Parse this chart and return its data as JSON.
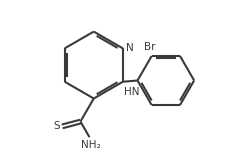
{
  "background_color": "#ffffff",
  "line_color": "#3a3a3a",
  "line_width": 1.5,
  "text_color": "#3a3a3a",
  "figsize": [
    2.51,
    1.53
  ],
  "dpi": 100,
  "xlim": [
    0.02,
    0.98
  ],
  "ylim": [
    0.08,
    0.95
  ]
}
